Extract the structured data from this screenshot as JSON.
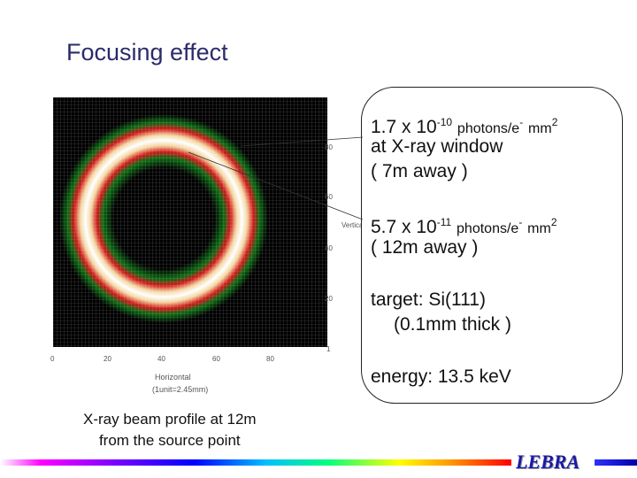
{
  "slide": {
    "title": "Focusing effect",
    "logo_text": "LEBRA"
  },
  "plot": {
    "x_ticks": [
      "0",
      "20",
      "40",
      "60",
      "80"
    ],
    "y_ticks": [
      "80",
      "60",
      "40",
      "20",
      "1"
    ],
    "xlabel": "Horizontal",
    "unit_note": "(1unit=2.45mm)",
    "ylabel": "Vertical"
  },
  "callout": {
    "line1_base": "1.7 x 10",
    "line1_exp": "-10",
    "line1_unit": "photons/e",
    "line1_unit_sup": "-",
    "line1_mm": "mm",
    "line1_mm_sup": "2",
    "line2": "at X-ray window",
    "line3": "( 7m away )",
    "line4_base": "5.7 x 10",
    "line4_exp": "-11",
    "line4_unit": "photons/e",
    "line4_unit_sup": "-",
    "line4_mm": "mm",
    "line4_mm_sup": "2",
    "line5": "( 12m away )",
    "line6": "target:  Si(111)",
    "line7": "(0.1mm thick )",
    "line8": "energy:  13.5 keV"
  },
  "caption": {
    "line1": "X-ray beam profile at 12m",
    "line2": "from  the source point"
  },
  "colors": {
    "title": "#2b2b6b",
    "logo": "#1a1aaa"
  }
}
